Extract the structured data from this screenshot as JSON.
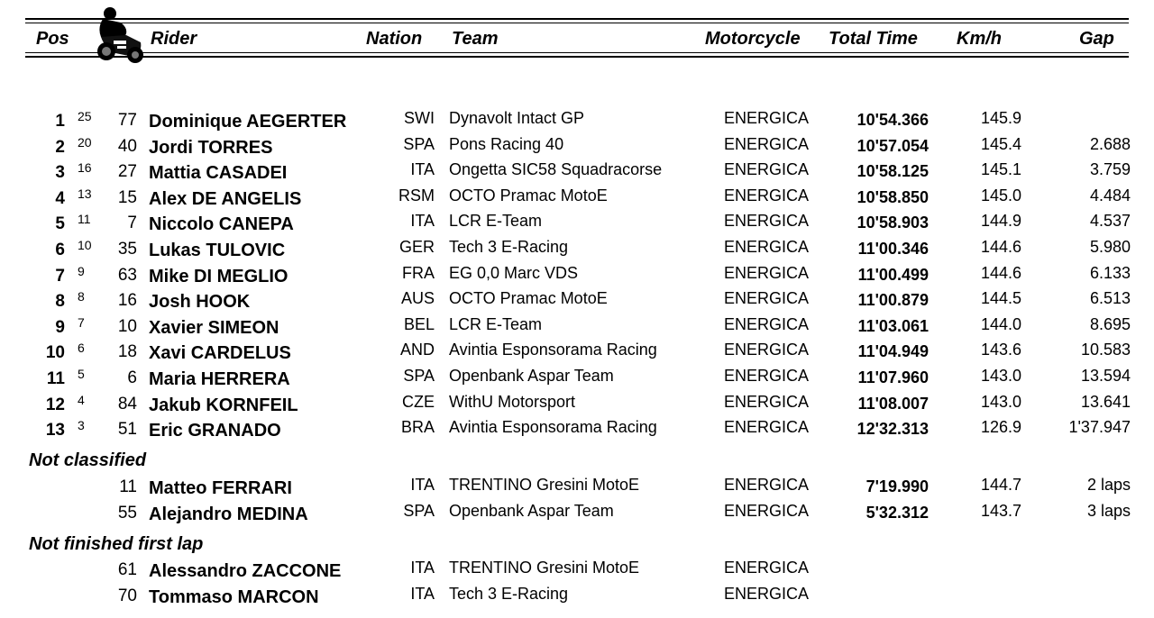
{
  "header": {
    "pos": "Pos",
    "rider": "Rider",
    "nation": "Nation",
    "team": "Team",
    "motorcycle": "Motorcycle",
    "total_time": "Total Time",
    "kmh": "Km/h",
    "gap": "Gap",
    "icon": "motorcycle-rider-icon"
  },
  "classified": [
    {
      "pos": "1",
      "pts": "25",
      "num": "77",
      "rider": "Dominique AEGERTER",
      "nation": "SWI",
      "team": "Dynavolt Intact GP",
      "moto": "ENERGICA",
      "time": "10'54.366",
      "kmh": "145.9",
      "gap": ""
    },
    {
      "pos": "2",
      "pts": "20",
      "num": "40",
      "rider": "Jordi TORRES",
      "nation": "SPA",
      "team": "Pons Racing 40",
      "moto": "ENERGICA",
      "time": "10'57.054",
      "kmh": "145.4",
      "gap": "2.688"
    },
    {
      "pos": "3",
      "pts": "16",
      "num": "27",
      "rider": "Mattia CASADEI",
      "nation": "ITA",
      "team": "Ongetta SIC58 Squadracorse",
      "moto": "ENERGICA",
      "time": "10'58.125",
      "kmh": "145.1",
      "gap": "3.759"
    },
    {
      "pos": "4",
      "pts": "13",
      "num": "15",
      "rider": "Alex DE ANGELIS",
      "nation": "RSM",
      "team": "OCTO Pramac MotoE",
      "moto": "ENERGICA",
      "time": "10'58.850",
      "kmh": "145.0",
      "gap": "4.484"
    },
    {
      "pos": "5",
      "pts": "11",
      "num": "7",
      "rider": "Niccolo CANEPA",
      "nation": "ITA",
      "team": "LCR E-Team",
      "moto": "ENERGICA",
      "time": "10'58.903",
      "kmh": "144.9",
      "gap": "4.537"
    },
    {
      "pos": "6",
      "pts": "10",
      "num": "35",
      "rider": "Lukas TULOVIC",
      "nation": "GER",
      "team": "Tech 3 E-Racing",
      "moto": "ENERGICA",
      "time": "11'00.346",
      "kmh": "144.6",
      "gap": "5.980"
    },
    {
      "pos": "7",
      "pts": "9",
      "num": "63",
      "rider": "Mike DI MEGLIO",
      "nation": "FRA",
      "team": "EG 0,0 Marc VDS",
      "moto": "ENERGICA",
      "time": "11'00.499",
      "kmh": "144.6",
      "gap": "6.133"
    },
    {
      "pos": "8",
      "pts": "8",
      "num": "16",
      "rider": "Josh HOOK",
      "nation": "AUS",
      "team": "OCTO Pramac MotoE",
      "moto": "ENERGICA",
      "time": "11'00.879",
      "kmh": "144.5",
      "gap": "6.513"
    },
    {
      "pos": "9",
      "pts": "7",
      "num": "10",
      "rider": "Xavier SIMEON",
      "nation": "BEL",
      "team": "LCR E-Team",
      "moto": "ENERGICA",
      "time": "11'03.061",
      "kmh": "144.0",
      "gap": "8.695"
    },
    {
      "pos": "10",
      "pts": "6",
      "num": "18",
      "rider": "Xavi CARDELUS",
      "nation": "AND",
      "team": "Avintia Esponsorama Racing",
      "moto": "ENERGICA",
      "time": "11'04.949",
      "kmh": "143.6",
      "gap": "10.583"
    },
    {
      "pos": "11",
      "pts": "5",
      "num": "6",
      "rider": "Maria HERRERA",
      "nation": "SPA",
      "team": "Openbank Aspar Team",
      "moto": "ENERGICA",
      "time": "11'07.960",
      "kmh": "143.0",
      "gap": "13.594"
    },
    {
      "pos": "12",
      "pts": "4",
      "num": "84",
      "rider": "Jakub KORNFEIL",
      "nation": "CZE",
      "team": "WithU Motorsport",
      "moto": "ENERGICA",
      "time": "11'08.007",
      "kmh": "143.0",
      "gap": "13.641"
    },
    {
      "pos": "13",
      "pts": "3",
      "num": "51",
      "rider": "Eric GRANADO",
      "nation": "BRA",
      "team": "Avintia Esponsorama Racing",
      "moto": "ENERGICA",
      "time": "12'32.313",
      "kmh": "126.9",
      "gap": "1'37.947"
    }
  ],
  "not_classified": {
    "title": "Not classified",
    "rows": [
      {
        "num": "11",
        "rider": "Matteo FERRARI",
        "nation": "ITA",
        "team": "TRENTINO Gresini MotoE",
        "moto": "ENERGICA",
        "time": "7'19.990",
        "kmh": "144.7",
        "gap": "2 laps"
      },
      {
        "num": "55",
        "rider": "Alejandro MEDINA",
        "nation": "SPA",
        "team": "Openbank Aspar Team",
        "moto": "ENERGICA",
        "time": "5'32.312",
        "kmh": "143.7",
        "gap": "3 laps"
      }
    ]
  },
  "not_finished": {
    "title": "Not finished first lap",
    "rows": [
      {
        "num": "61",
        "rider": "Alessandro ZACCONE",
        "nation": "ITA",
        "team": "TRENTINO Gresini MotoE",
        "moto": "ENERGICA"
      },
      {
        "num": "70",
        "rider": "Tommaso MARCON",
        "nation": "ITA",
        "team": "Tech 3 E-Racing",
        "moto": "ENERGICA"
      }
    ]
  }
}
